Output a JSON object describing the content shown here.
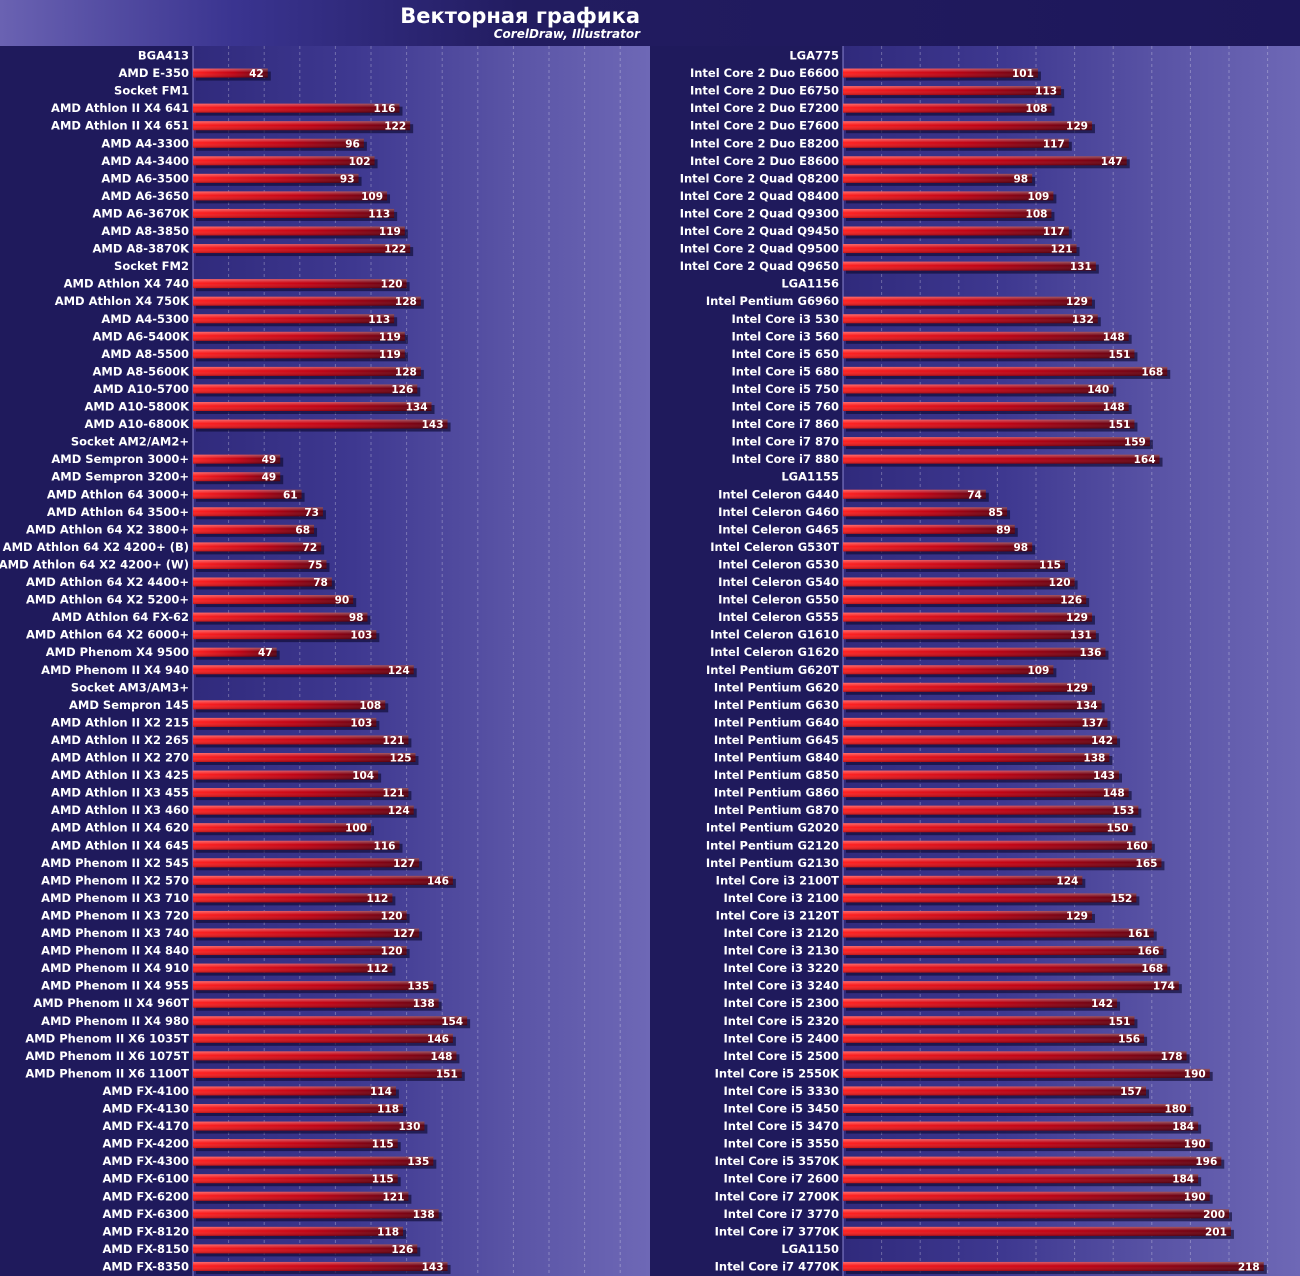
{
  "title": "Векторная графика",
  "subtitle": "CorelDraw, Illustrator",
  "colors": {
    "background": "#1f1a5c",
    "bar_bright": "#ff1a1a",
    "bar_dark": "#5a0010",
    "label": "#ffffff"
  },
  "chart_data": [
    {
      "type": "bar",
      "orientation": "horizontal",
      "grid": true,
      "rows": [
        {
          "label": "BGA413",
          "group": true
        },
        {
          "label": "AMD E-350",
          "value": 42
        },
        {
          "label": "Socket FM1",
          "group": true
        },
        {
          "label": "AMD Athlon II X4 641",
          "value": 116
        },
        {
          "label": "AMD Athlon II X4 651",
          "value": 122
        },
        {
          "label": "AMD A4-3300",
          "value": 96
        },
        {
          "label": "AMD A4-3400",
          "value": 102
        },
        {
          "label": "AMD A6-3500",
          "value": 93
        },
        {
          "label": "AMD A6-3650",
          "value": 109
        },
        {
          "label": "AMD A6-3670K",
          "value": 113
        },
        {
          "label": "AMD A8-3850",
          "value": 119
        },
        {
          "label": "AMD A8-3870K",
          "value": 122
        },
        {
          "label": "Socket FM2",
          "group": true
        },
        {
          "label": "AMD Athlon X4 740",
          "value": 120
        },
        {
          "label": "AMD Athlon X4 750K",
          "value": 128
        },
        {
          "label": "AMD A4-5300",
          "value": 113
        },
        {
          "label": "AMD A6-5400K",
          "value": 119
        },
        {
          "label": "AMD A8-5500",
          "value": 119
        },
        {
          "label": "AMD A8-5600K",
          "value": 128
        },
        {
          "label": "AMD A10-5700",
          "value": 126
        },
        {
          "label": "AMD A10-5800K",
          "value": 134
        },
        {
          "label": "AMD A10-6800K",
          "value": 143
        },
        {
          "label": "Socket AM2/AM2+",
          "group": true
        },
        {
          "label": "AMD Sempron 3000+",
          "value": 49
        },
        {
          "label": "AMD Sempron 3200+",
          "value": 49
        },
        {
          "label": "AMD Athlon 64 3000+",
          "value": 61
        },
        {
          "label": "AMD Athlon 64 3500+",
          "value": 73
        },
        {
          "label": "AMD Athlon 64 X2 3800+",
          "value": 68
        },
        {
          "label": "AMD Athlon 64 X2 4200+ (B)",
          "value": 72
        },
        {
          "label": "AMD Athlon 64 X2 4200+ (W)",
          "value": 75
        },
        {
          "label": "AMD Athlon 64 X2 4400+",
          "value": 78
        },
        {
          "label": "AMD Athlon 64 X2 5200+",
          "value": 90
        },
        {
          "label": "AMD Athlon 64 FX-62",
          "value": 98
        },
        {
          "label": "AMD Athlon 64 X2 6000+",
          "value": 103
        },
        {
          "label": "AMD Phenom X4 9500",
          "value": 47
        },
        {
          "label": "AMD Phenom II X4 940",
          "value": 124
        },
        {
          "label": "Socket AM3/AM3+",
          "group": true
        },
        {
          "label": "AMD Sempron 145",
          "value": 108
        },
        {
          "label": "AMD Athlon II X2 215",
          "value": 103
        },
        {
          "label": "AMD Athlon II X2 265",
          "value": 121
        },
        {
          "label": "AMD Athlon II X2 270",
          "value": 125
        },
        {
          "label": "AMD Athlon II X3 425",
          "value": 104
        },
        {
          "label": "AMD Athlon II X3 455",
          "value": 121
        },
        {
          "label": "AMD Athlon II X3 460",
          "value": 124
        },
        {
          "label": "AMD Athlon II X4 620",
          "value": 100
        },
        {
          "label": "AMD Athlon II X4 645",
          "value": 116
        },
        {
          "label": "AMD Phenom II X2 545",
          "value": 127
        },
        {
          "label": "AMD Phenom II X2 570",
          "value": 146
        },
        {
          "label": "AMD Phenom II X3 710",
          "value": 112
        },
        {
          "label": "AMD Phenom II X3 720",
          "value": 120
        },
        {
          "label": "AMD Phenom II X3 740",
          "value": 127
        },
        {
          "label": "AMD Phenom II X4 840",
          "value": 120
        },
        {
          "label": "AMD Phenom II X4 910",
          "value": 112
        },
        {
          "label": "AMD Phenom II X4 955",
          "value": 135
        },
        {
          "label": "AMD Phenom II X4 960T",
          "value": 138
        },
        {
          "label": "AMD Phenom II X4 980",
          "value": 154
        },
        {
          "label": "AMD Phenom II X6 1035T",
          "value": 146
        },
        {
          "label": "AMD Phenom II X6 1075T",
          "value": 148
        },
        {
          "label": "AMD Phenom II X6 1100T",
          "value": 151
        },
        {
          "label": "AMD FX-4100",
          "value": 114
        },
        {
          "label": "AMD FX-4130",
          "value": 118
        },
        {
          "label": "AMD FX-4170",
          "value": 130
        },
        {
          "label": "AMD FX-4200",
          "value": 115
        },
        {
          "label": "AMD FX-4300",
          "value": 135
        },
        {
          "label": "AMD FX-6100",
          "value": 115
        },
        {
          "label": "AMD FX-6200",
          "value": 121
        },
        {
          "label": "AMD FX-6300",
          "value": 138
        },
        {
          "label": "AMD FX-8120",
          "value": 118
        },
        {
          "label": "AMD FX-8150",
          "value": 126
        },
        {
          "label": "AMD FX-8350",
          "value": 143
        }
      ]
    },
    {
      "type": "bar",
      "orientation": "horizontal",
      "grid": true,
      "rows": [
        {
          "label": "LGA775",
          "group": true
        },
        {
          "label": "Intel Core 2 Duo E6600",
          "value": 101
        },
        {
          "label": "Intel Core 2 Duo E6750",
          "value": 113
        },
        {
          "label": "Intel Core 2 Duo E7200",
          "value": 108
        },
        {
          "label": "Intel Core 2 Duo E7600",
          "value": 129
        },
        {
          "label": "Intel Core 2 Duo E8200",
          "value": 117
        },
        {
          "label": "Intel Core 2 Duo E8600",
          "value": 147
        },
        {
          "label": "Intel Core 2 Quad Q8200",
          "value": 98
        },
        {
          "label": "Intel Core 2 Quad Q8400",
          "value": 109
        },
        {
          "label": "Intel Core 2 Quad Q9300",
          "value": 108
        },
        {
          "label": "Intel Core 2 Quad Q9450",
          "value": 117
        },
        {
          "label": "Intel Core 2 Quad Q9500",
          "value": 121
        },
        {
          "label": "Intel Core 2 Quad Q9650",
          "value": 131
        },
        {
          "label": "LGA1156",
          "group": true
        },
        {
          "label": "Intel Pentium G6960",
          "value": 129
        },
        {
          "label": "Intel Core i3 530",
          "value": 132
        },
        {
          "label": "Intel Core i3 560",
          "value": 148
        },
        {
          "label": "Intel Core i5 650",
          "value": 151
        },
        {
          "label": "Intel Core i5 680",
          "value": 168
        },
        {
          "label": "Intel Core i5 750",
          "value": 140
        },
        {
          "label": "Intel Core i5 760",
          "value": 148
        },
        {
          "label": "Intel Core i7 860",
          "value": 151
        },
        {
          "label": "Intel Core i7 870",
          "value": 159
        },
        {
          "label": "Intel Core i7 880",
          "value": 164
        },
        {
          "label": "LGA1155",
          "group": true
        },
        {
          "label": "Intel Celeron G440",
          "value": 74
        },
        {
          "label": "Intel Celeron G460",
          "value": 85
        },
        {
          "label": "Intel Celeron G465",
          "value": 89
        },
        {
          "label": "Intel Celeron G530T",
          "value": 98
        },
        {
          "label": "Intel Celeron G530",
          "value": 115
        },
        {
          "label": "Intel Celeron G540",
          "value": 120
        },
        {
          "label": "Intel Celeron G550",
          "value": 126
        },
        {
          "label": "Intel Celeron G555",
          "value": 129
        },
        {
          "label": "Intel Celeron G1610",
          "value": 131
        },
        {
          "label": "Intel Celeron G1620",
          "value": 136
        },
        {
          "label": "Intel Pentium G620T",
          "value": 109
        },
        {
          "label": "Intel Pentium G620",
          "value": 129
        },
        {
          "label": "Intel Pentium G630",
          "value": 134
        },
        {
          "label": "Intel Pentium G640",
          "value": 137
        },
        {
          "label": "Intel Pentium G645",
          "value": 142
        },
        {
          "label": "Intel Pentium G840",
          "value": 138
        },
        {
          "label": "Intel Pentium G850",
          "value": 143
        },
        {
          "label": "Intel Pentium G860",
          "value": 148
        },
        {
          "label": "Intel Pentium G870",
          "value": 153
        },
        {
          "label": "Intel Pentium G2020",
          "value": 150
        },
        {
          "label": "Intel Pentium G2120",
          "value": 160
        },
        {
          "label": "Intel Pentium G2130",
          "value": 165
        },
        {
          "label": "Intel Core i3 2100T",
          "value": 124
        },
        {
          "label": "Intel Core i3 2100",
          "value": 152
        },
        {
          "label": "Intel Core i3 2120T",
          "value": 129
        },
        {
          "label": "Intel Core i3 2120",
          "value": 161
        },
        {
          "label": "Intel Core i3 2130",
          "value": 166
        },
        {
          "label": "Intel Core i3 3220",
          "value": 168
        },
        {
          "label": "Intel Core i3 3240",
          "value": 174
        },
        {
          "label": "Intel Core i5 2300",
          "value": 142
        },
        {
          "label": "Intel Core i5 2320",
          "value": 151
        },
        {
          "label": "Intel Core i5 2400",
          "value": 156
        },
        {
          "label": "Intel Core i5 2500",
          "value": 178
        },
        {
          "label": "Intel Core i5 2550K",
          "value": 190
        },
        {
          "label": "Intel Core i5 3330",
          "value": 157
        },
        {
          "label": "Intel Core i5 3450",
          "value": 180
        },
        {
          "label": "Intel Core i5 3470",
          "value": 184
        },
        {
          "label": "Intel Core i5 3550",
          "value": 190
        },
        {
          "label": "Intel Core i5 3570K",
          "value": 196
        },
        {
          "label": "Intel Core i7 2600",
          "value": 184
        },
        {
          "label": "Intel Core i7 2700K",
          "value": 190
        },
        {
          "label": "Intel Core i7 3770",
          "value": 200
        },
        {
          "label": "Intel Core i7 3770K",
          "value": 201
        },
        {
          "label": "LGA1150",
          "group": true
        },
        {
          "label": "Intel Core i7 4770K",
          "value": 218
        }
      ]
    }
  ]
}
